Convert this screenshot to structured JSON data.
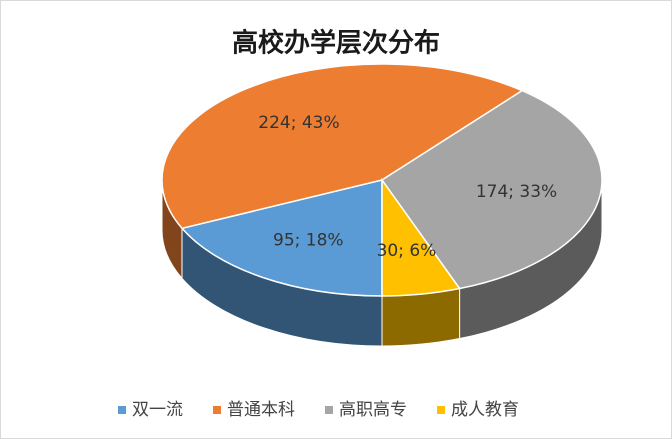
{
  "chart_data": {
    "type": "pie3d",
    "title": "高校办学层次分布",
    "categories": [
      "双一流",
      "普通本科",
      "高职高专",
      "成人教育"
    ],
    "values": [
      95,
      224,
      174,
      30
    ],
    "value_labels": [
      "95; 18%",
      "224; 43%",
      "174; 33%",
      "30; 6%"
    ],
    "colors": [
      "#5b9bd5",
      "#ed7d31",
      "#a5a5a5",
      "#ffc000"
    ],
    "legend": "bottom"
  }
}
